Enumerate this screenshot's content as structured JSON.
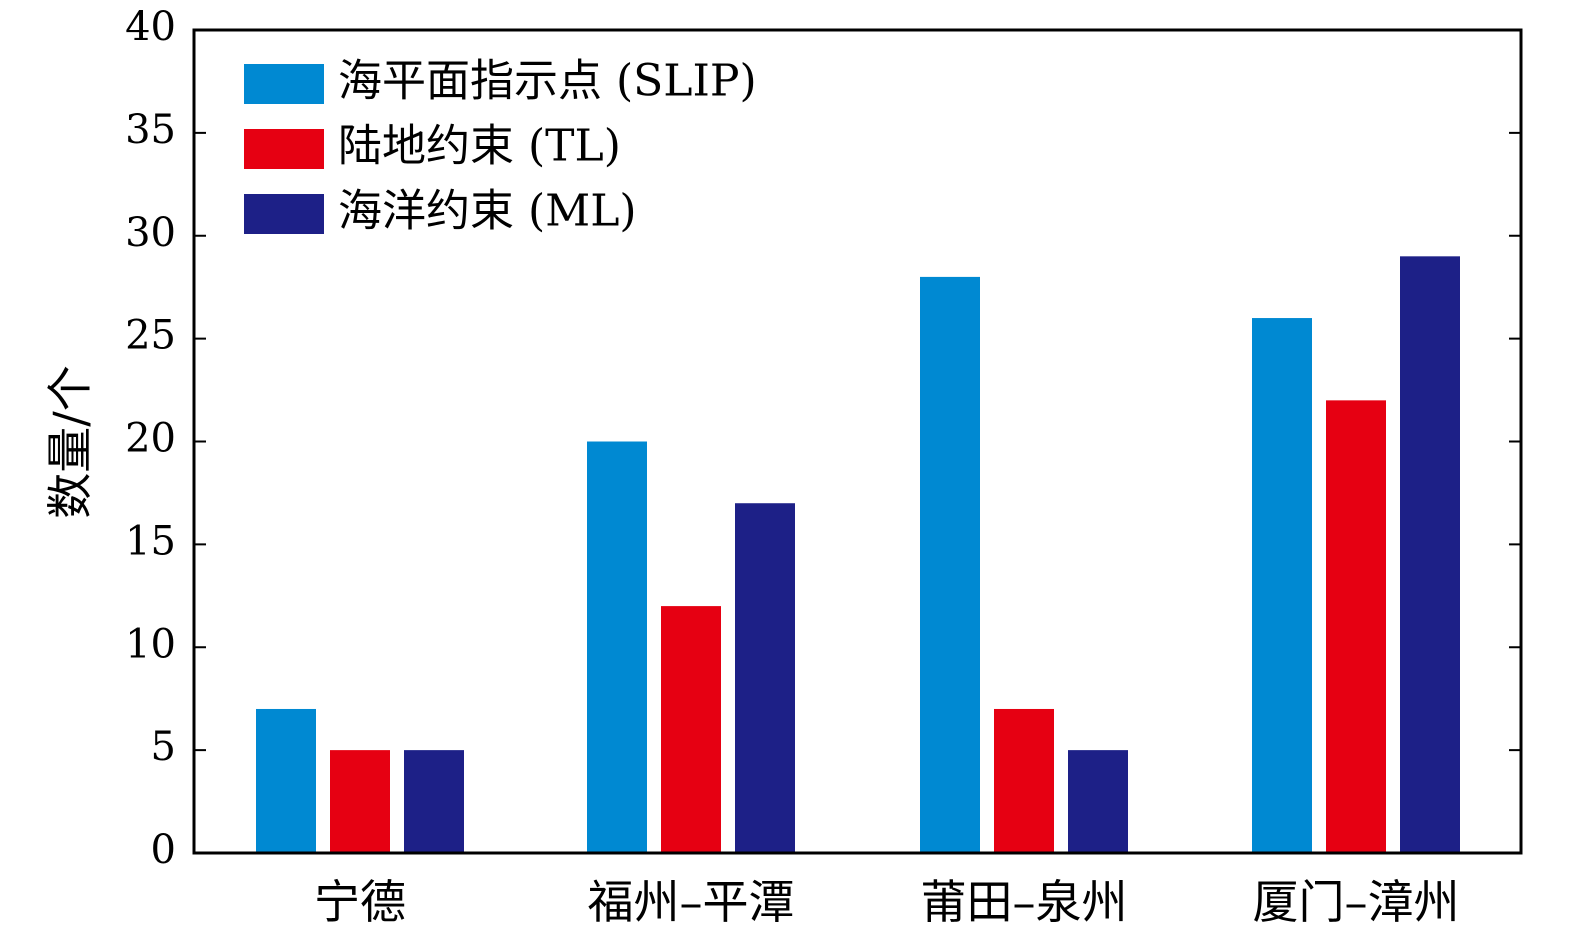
{
  "chart_data": {
    "type": "bar",
    "title": "",
    "xlabel": "",
    "ylabel": "数量/个",
    "ylim": [
      0,
      40
    ],
    "yticks": [
      "0",
      "5",
      "10",
      "15",
      "20",
      "25",
      "30",
      "35",
      "40"
    ],
    "categories": [
      "宁德",
      "福州–平潭",
      "莆田–泉州",
      "厦门–漳州"
    ],
    "series": [
      {
        "name": "海平面指示点 (SLIP)",
        "color": "#0089d2",
        "values": [
          7,
          20,
          28,
          26
        ]
      },
      {
        "name": "陆地约束 (TL)",
        "color": "#e60012",
        "values": [
          5,
          12,
          7,
          22
        ]
      },
      {
        "name": "海洋约束 (ML)",
        "color": "#1d2087",
        "values": [
          5,
          17,
          5,
          29
        ]
      }
    ],
    "legend_position": "top-left",
    "grid": false
  }
}
